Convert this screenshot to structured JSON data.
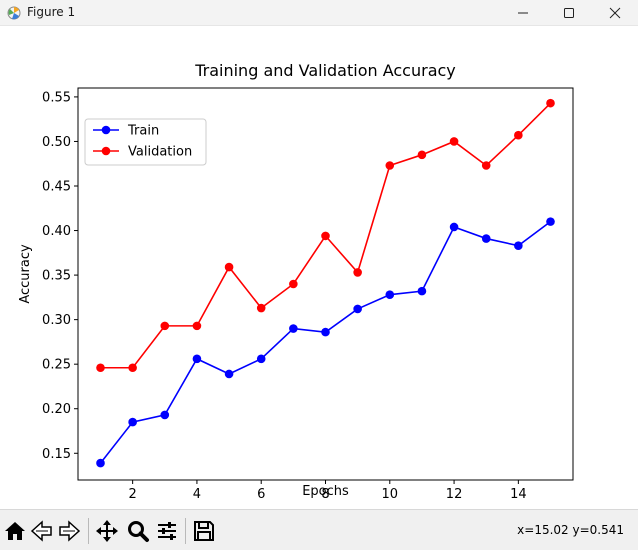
{
  "window": {
    "title": "Figure 1"
  },
  "toolbar": {
    "coords": "x=15.02 y=0.541",
    "tools": [
      "home-icon",
      "back-icon",
      "forward-icon",
      "pan-icon",
      "zoom-icon",
      "configure-icon",
      "save-icon"
    ]
  },
  "chart_data": {
    "type": "line",
    "title": "Training and Validation Accuracy",
    "xlabel": "Epochs",
    "ylabel": "Accuracy",
    "xlim": [
      0.3,
      15.7
    ],
    "ylim": [
      0.12,
      0.56
    ],
    "xticks": [
      2,
      4,
      6,
      8,
      10,
      12,
      14
    ],
    "yticks": [
      0.15,
      0.2,
      0.25,
      0.3,
      0.35,
      0.4,
      0.45,
      0.5,
      0.55
    ],
    "grid": false,
    "legend_position": "upper-left",
    "x": [
      1,
      2,
      3,
      4,
      5,
      6,
      7,
      8,
      9,
      10,
      11,
      12,
      13,
      14,
      15
    ],
    "series": [
      {
        "name": "Train",
        "color": "#0000ff",
        "marker": "circle",
        "values": [
          0.139,
          0.185,
          0.193,
          0.256,
          0.239,
          0.256,
          0.29,
          0.286,
          0.312,
          0.328,
          0.332,
          0.404,
          0.391,
          0.383,
          0.41
        ]
      },
      {
        "name": "Validation",
        "color": "#ff0000",
        "marker": "circle",
        "values": [
          0.246,
          0.246,
          0.293,
          0.293,
          0.359,
          0.313,
          0.34,
          0.394,
          0.353,
          0.473,
          0.485,
          0.5,
          0.473,
          0.507,
          0.543
        ]
      }
    ]
  }
}
